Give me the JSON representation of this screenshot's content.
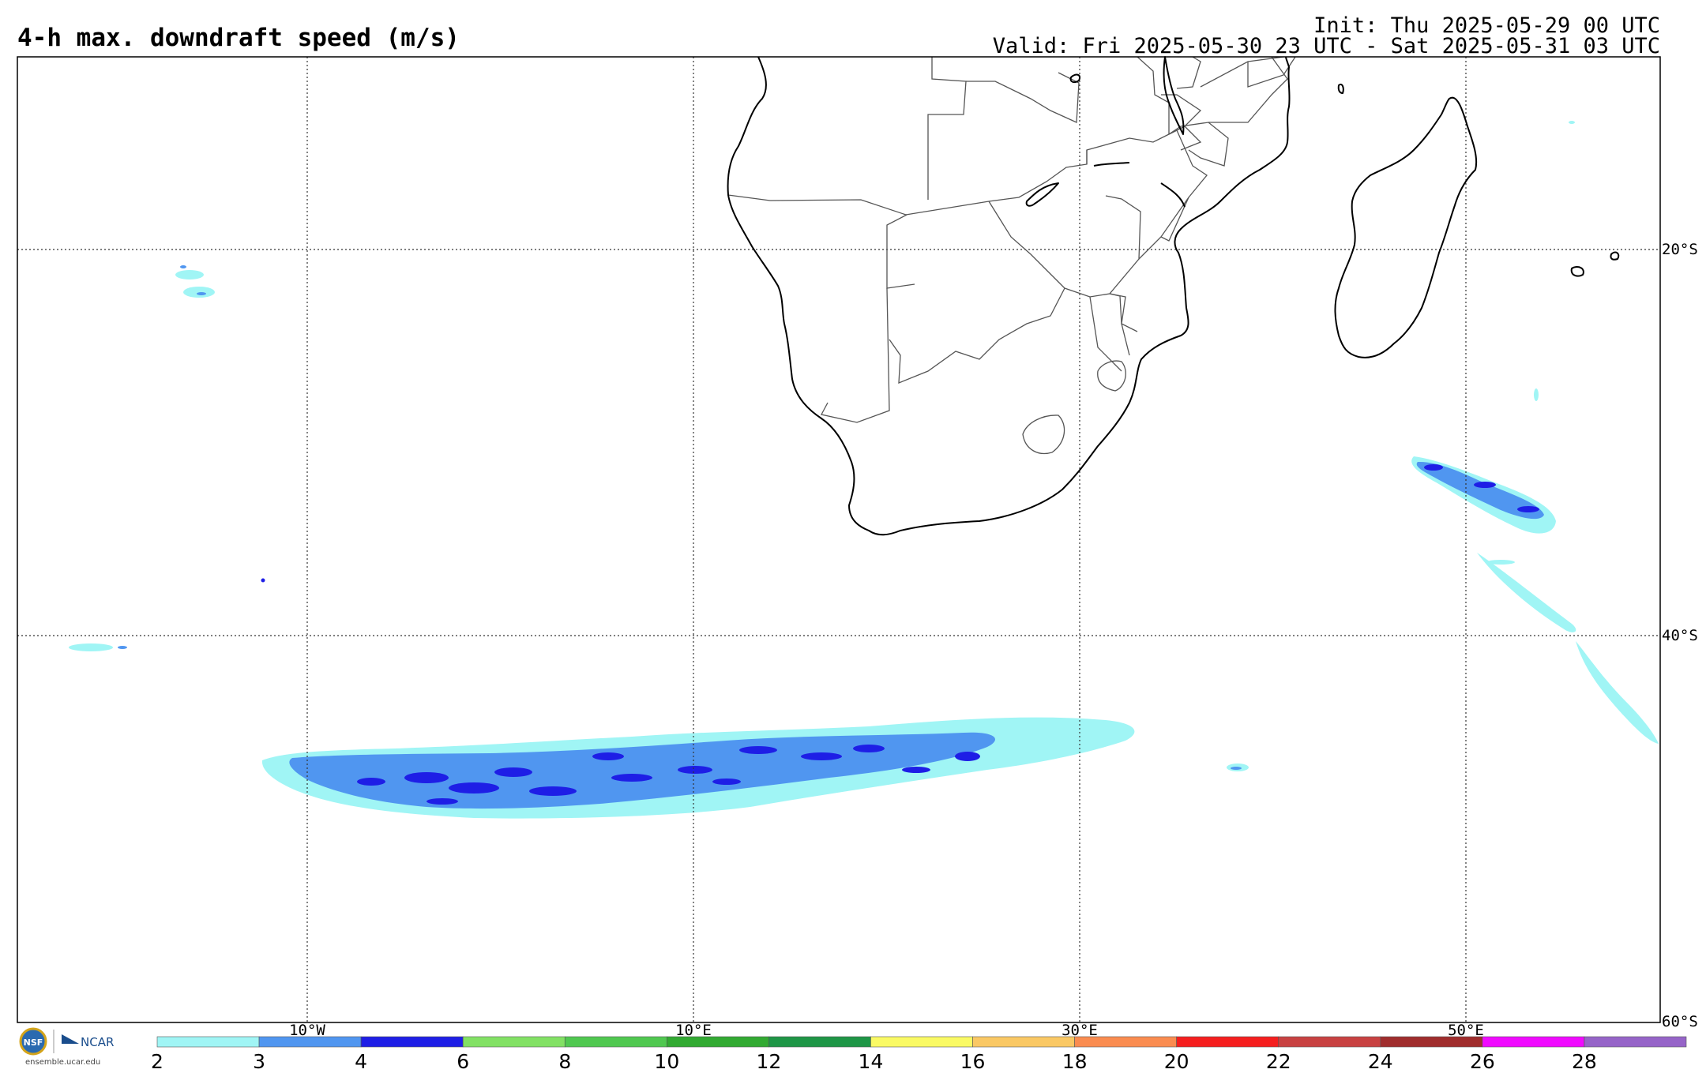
{
  "title": "4-h max. downdraft speed (m/s)",
  "init": "Init: Thu 2025-05-29 00 UTC",
  "valid": "Valid: Fri 2025-05-30 23 UTC - Sat 2025-05-31 03 UTC",
  "lon_labels": [
    "10°W",
    "10°E",
    "30°E",
    "50°E"
  ],
  "lat_labels": [
    "20°S",
    "40°S",
    "60°S"
  ],
  "logo": {
    "org_text": "NCAR",
    "badge_text": "NSF",
    "url": "ensemble.ucar.edu"
  },
  "colorbar": {
    "ticks": [
      "2",
      "3",
      "4",
      "6",
      "8",
      "10",
      "12",
      "14",
      "16",
      "18",
      "20",
      "22",
      "24",
      "26",
      "28"
    ],
    "colors": [
      "#a0f5f5",
      "#5096f0",
      "#1e1ee6",
      "#82e164",
      "#50c850",
      "#32aa32",
      "#1e9646",
      "#fafa64",
      "#fac864",
      "#fa8c50",
      "#f51e1e",
      "#c84141",
      "#a02d2d",
      "#f00aff",
      "#9664c8"
    ]
  },
  "colors": {
    "light_cyan": "#a0f5f5",
    "mid_blue": "#5096f0",
    "dark_blue": "#1e1ee6",
    "coast": "#000000",
    "border": "#555555",
    "grid": "#333333"
  }
}
